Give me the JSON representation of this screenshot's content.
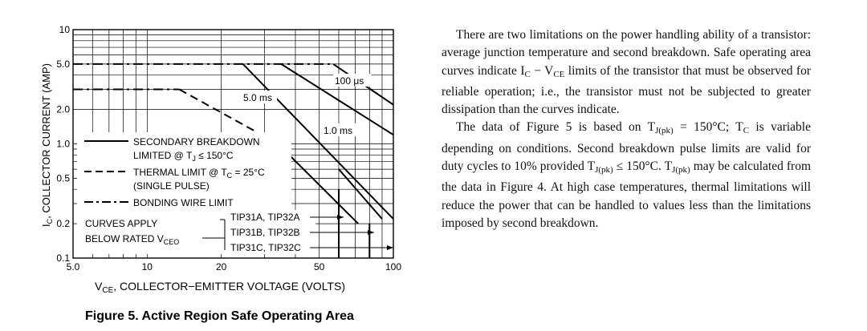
{
  "figure_caption": "Figure 5. Active Region Safe Operating Area",
  "chart_data": {
    "type": "line",
    "x_scale": "log",
    "y_scale": "log",
    "xlim": [
      5,
      100
    ],
    "ylim": [
      0.1,
      10
    ],
    "grid": true,
    "xlabel": "VCE, COLLECTOR−EMITTER VOLTAGE (VOLTS)",
    "ylabel": "IC, COLLECTOR CURRENT (AMP)",
    "x_ticks": [
      {
        "value": 5,
        "label": "5.0"
      },
      {
        "value": 10,
        "label": "10"
      },
      {
        "value": 20,
        "label": "20"
      },
      {
        "value": 50,
        "label": "50"
      },
      {
        "value": 100,
        "label": "100"
      }
    ],
    "y_ticks": [
      {
        "value": 0.1,
        "label": "0.1"
      },
      {
        "value": 0.2,
        "label": "0.2"
      },
      {
        "value": 0.5,
        "label": "0.5"
      },
      {
        "value": 1.0,
        "label": "1.0"
      },
      {
        "value": 2.0,
        "label": "2.0"
      },
      {
        "value": 5.0,
        "label": "5.0"
      },
      {
        "value": 10,
        "label": "10"
      }
    ],
    "series": [
      {
        "name": "100 μs",
        "style": "solid",
        "points": [
          [
            57,
            5.0
          ],
          [
            100,
            2.2
          ]
        ]
      },
      {
        "name": "5.0 ms",
        "style": "solid",
        "points": [
          [
            24.5,
            5.0
          ],
          [
            100,
            0.22
          ]
        ]
      },
      {
        "name": "1.0 ms",
        "style": "solid",
        "points": [
          [
            35,
            5.0
          ],
          [
            100,
            1.2
          ]
        ]
      },
      {
        "name": "",
        "style": "solid",
        "points": [
          [
            34,
            1.0
          ],
          [
            72,
            0.2
          ]
        ]
      },
      {
        "name": "",
        "style": "solid",
        "points": [
          [
            60,
            0.6
          ],
          [
            90,
            0.22
          ]
        ]
      },
      {
        "name": "bonding wire",
        "style": "dashdot",
        "points": [
          [
            5,
            5.0
          ],
          [
            57,
            5.0
          ]
        ]
      },
      {
        "name": "bonding wire",
        "style": "dashdot",
        "points": [
          [
            5,
            3.0
          ],
          [
            13.5,
            3.0
          ]
        ]
      },
      {
        "name": "thermal",
        "style": "dash",
        "points": [
          [
            13.5,
            3.0
          ],
          [
            34,
            1.0
          ]
        ]
      },
      {
        "name": "vceo-60",
        "style": "solid",
        "points": [
          [
            60,
            0.1
          ],
          [
            60,
            0.4
          ]
        ]
      },
      {
        "name": "vceo-80",
        "style": "solid",
        "points": [
          [
            80,
            0.1
          ],
          [
            80,
            0.2
          ]
        ]
      }
    ],
    "curve_labels": [
      {
        "text": "100 μs"
      },
      {
        "text": "5.0 ms"
      },
      {
        "text": "1.0 ms"
      }
    ],
    "legend": {
      "placement": "center",
      "entries": [
        {
          "style": "solid",
          "lines": [
            "SECONDARY BREAKDOWN",
            "LIMITED @ TJ ≤ 150°C"
          ]
        },
        {
          "style": "dash",
          "lines": [
            "THERMAL LIMIT @ TC = 25°C",
            "(SINGLE PULSE)"
          ]
        },
        {
          "style": "dashdot",
          "lines": [
            "BONDING WIRE LIMIT"
          ]
        }
      ]
    },
    "annotations": {
      "curves_apply_line1": "CURVES APPLY",
      "curves_apply_line2": "BELOW RATED VCEO",
      "parts": [
        "TIP31A, TIP32A",
        "TIP31B, TIP32B",
        "TIP31C, TIP32C"
      ]
    }
  },
  "text": {
    "p1_lines": [
      "There are two limitations on the power handling ability of",
      "a transistor: average junction temperature and second",
      "breakdown. Safe operating area curves indicate IC − VCE",
      "limits of the transistor that must be observed for reliable",
      "operation; i.e., the transistor must not be subjected to greater",
      "dissipation than the curves indicate."
    ],
    "p2_lines": [
      "The data of Figure 5 is based on TJ(pk) = 150°C; TC is",
      "variable depending on conditions. Second breakdown pulse",
      "limits are valid for duty cycles to 10% provided TJ(pk)",
      "≤ 150°C. TJ(pk) may be calculated from the data in Figure 4.",
      "At high case temperatures, thermal limitations will reduce",
      "the power that can be handled to values less than the",
      "limitations imposed by second breakdown."
    ]
  }
}
